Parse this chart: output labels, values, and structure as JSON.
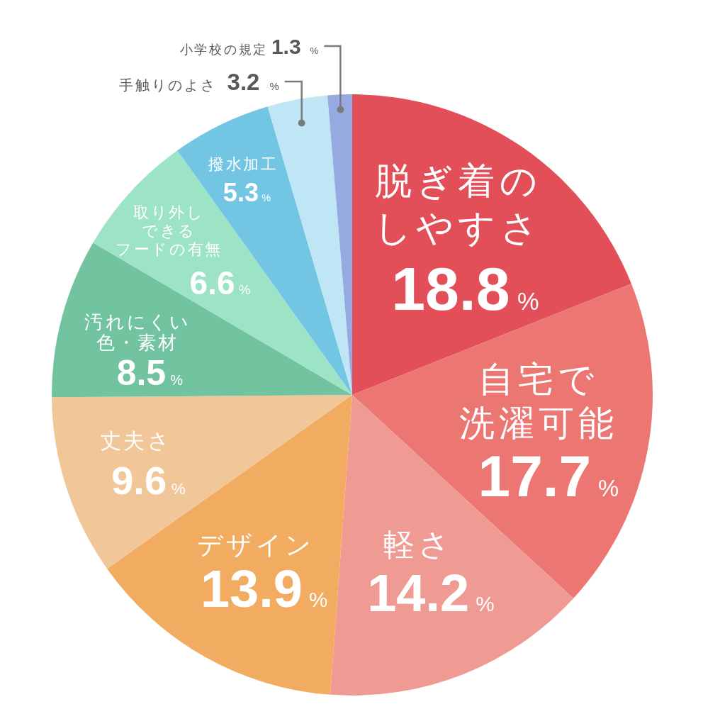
{
  "chart_data": {
    "type": "pie",
    "categories": [
      "脱ぎ着のしやすさ",
      "自宅で洗濯可能",
      "軽さ",
      "デザイン",
      "丈夫さ",
      "汚れにくい色・素材",
      "取り外しできるフードの有無",
      "撥水加工",
      "手触りのよさ",
      "小学校の規定"
    ],
    "values": [
      18.8,
      17.7,
      14.2,
      13.9,
      9.6,
      8.5,
      6.6,
      5.3,
      3.2,
      1.3
    ],
    "colors": [
      "#e24f59",
      "#eb7672",
      "#ef9b94",
      "#f1ac61",
      "#f1c699",
      "#72c4a0",
      "#9de3c6",
      "#72c6e3",
      "#bee6f5",
      "#97a9e1"
    ],
    "value_labels": [
      "18.8%",
      "17.7%",
      "14.2%",
      "13.9%",
      "9.6%",
      "8.5%",
      "6.6%",
      "5.3%",
      "3.2 %",
      "1.3 %"
    ]
  }
}
